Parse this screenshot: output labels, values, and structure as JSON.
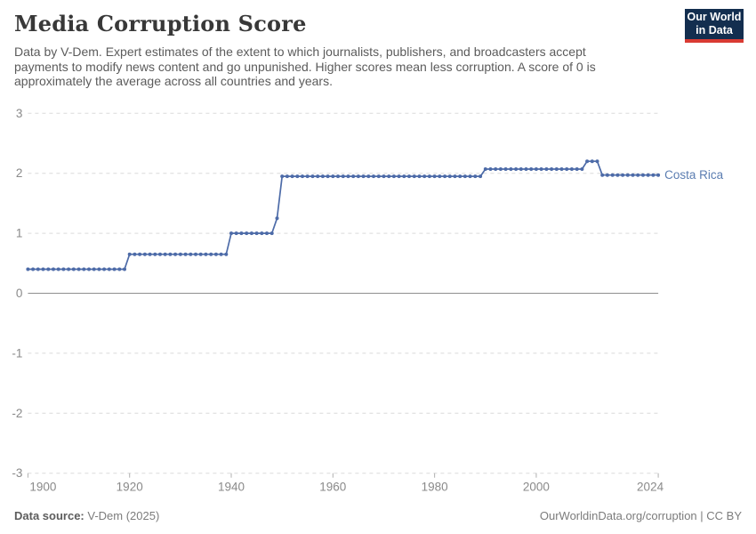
{
  "header": {
    "title": "Media Corruption Score",
    "subtitle": "Data by V-Dem. Expert estimates of the extent to which journalists, publishers, and broadcasters accept payments to modify news content and go unpunished. Higher scores mean less corruption. A score of 0 is approximately the average across all countries and years.",
    "logo_line1": "Our World",
    "logo_line2": "in Data"
  },
  "chart_data": {
    "type": "line",
    "title": "Media Corruption Score",
    "entity": "Costa Rica",
    "xlabel": "",
    "ylabel": "",
    "xlim": [
      1900,
      2024
    ],
    "ylim": [
      -3,
      3
    ],
    "x_ticks": [
      1900,
      1920,
      1940,
      1960,
      1980,
      2000,
      2024
    ],
    "y_ticks": [
      3,
      2,
      1,
      0,
      -1,
      -2,
      -3
    ],
    "grid": "horizontal dashed gridlines, solid line at 0, markers on every yearly point",
    "legend_position": "end-of-line label",
    "series": [
      {
        "name": "Costa Rica",
        "color": "#4d6ba8",
        "label_color": "#5b7db1",
        "x": [
          1900,
          1901,
          1902,
          1903,
          1904,
          1905,
          1906,
          1907,
          1908,
          1909,
          1910,
          1911,
          1912,
          1913,
          1914,
          1915,
          1916,
          1917,
          1918,
          1919,
          1920,
          1921,
          1922,
          1923,
          1924,
          1925,
          1926,
          1927,
          1928,
          1929,
          1930,
          1931,
          1932,
          1933,
          1934,
          1935,
          1936,
          1937,
          1938,
          1939,
          1940,
          1941,
          1942,
          1943,
          1944,
          1945,
          1946,
          1947,
          1948,
          1949,
          1950,
          1951,
          1952,
          1953,
          1954,
          1955,
          1956,
          1957,
          1958,
          1959,
          1960,
          1961,
          1962,
          1963,
          1964,
          1965,
          1966,
          1967,
          1968,
          1969,
          1970,
          1971,
          1972,
          1973,
          1974,
          1975,
          1976,
          1977,
          1978,
          1979,
          1980,
          1981,
          1982,
          1983,
          1984,
          1985,
          1986,
          1987,
          1988,
          1989,
          1990,
          1991,
          1992,
          1993,
          1994,
          1995,
          1996,
          1997,
          1998,
          1999,
          2000,
          2001,
          2002,
          2003,
          2004,
          2005,
          2006,
          2007,
          2008,
          2009,
          2010,
          2011,
          2012,
          2013,
          2014,
          2015,
          2016,
          2017,
          2018,
          2019,
          2020,
          2021,
          2022,
          2023,
          2024
        ],
        "values": [
          0.4,
          0.4,
          0.4,
          0.4,
          0.4,
          0.4,
          0.4,
          0.4,
          0.4,
          0.4,
          0.4,
          0.4,
          0.4,
          0.4,
          0.4,
          0.4,
          0.4,
          0.4,
          0.4,
          0.4,
          0.65,
          0.65,
          0.65,
          0.65,
          0.65,
          0.65,
          0.65,
          0.65,
          0.65,
          0.65,
          0.65,
          0.65,
          0.65,
          0.65,
          0.65,
          0.65,
          0.65,
          0.65,
          0.65,
          0.65,
          1.0,
          1.0,
          1.0,
          1.0,
          1.0,
          1.0,
          1.0,
          1.0,
          1.0,
          1.25,
          1.95,
          1.95,
          1.95,
          1.95,
          1.95,
          1.95,
          1.95,
          1.95,
          1.95,
          1.95,
          1.95,
          1.95,
          1.95,
          1.95,
          1.95,
          1.95,
          1.95,
          1.95,
          1.95,
          1.95,
          1.95,
          1.95,
          1.95,
          1.95,
          1.95,
          1.95,
          1.95,
          1.95,
          1.95,
          1.95,
          1.95,
          1.95,
          1.95,
          1.95,
          1.95,
          1.95,
          1.95,
          1.95,
          1.95,
          1.95,
          2.07,
          2.07,
          2.07,
          2.07,
          2.07,
          2.07,
          2.07,
          2.07,
          2.07,
          2.07,
          2.07,
          2.07,
          2.07,
          2.07,
          2.07,
          2.07,
          2.07,
          2.07,
          2.07,
          2.07,
          2.2,
          2.2,
          2.2,
          1.97,
          1.97,
          1.97,
          1.97,
          1.97,
          1.97,
          1.97,
          1.97,
          1.97,
          1.97,
          1.97,
          1.97
        ]
      }
    ]
  },
  "footer": {
    "source_label": "Data source:",
    "source_value": " V-Dem (2025)",
    "right_text": "OurWorldinData.org/corruption | CC BY"
  },
  "colors": {
    "line": "#4d6ba8",
    "entity_label": "#5b7db1",
    "grid": "#dadada",
    "zero_line": "#8f8f8f",
    "axis_text": "#8a8a8a",
    "tick": "#b0b0b0",
    "title_text": "#383838",
    "subtitle_text": "#5b5b5b",
    "logo_bg": "#132e4f",
    "logo_red": "#d93b33"
  }
}
